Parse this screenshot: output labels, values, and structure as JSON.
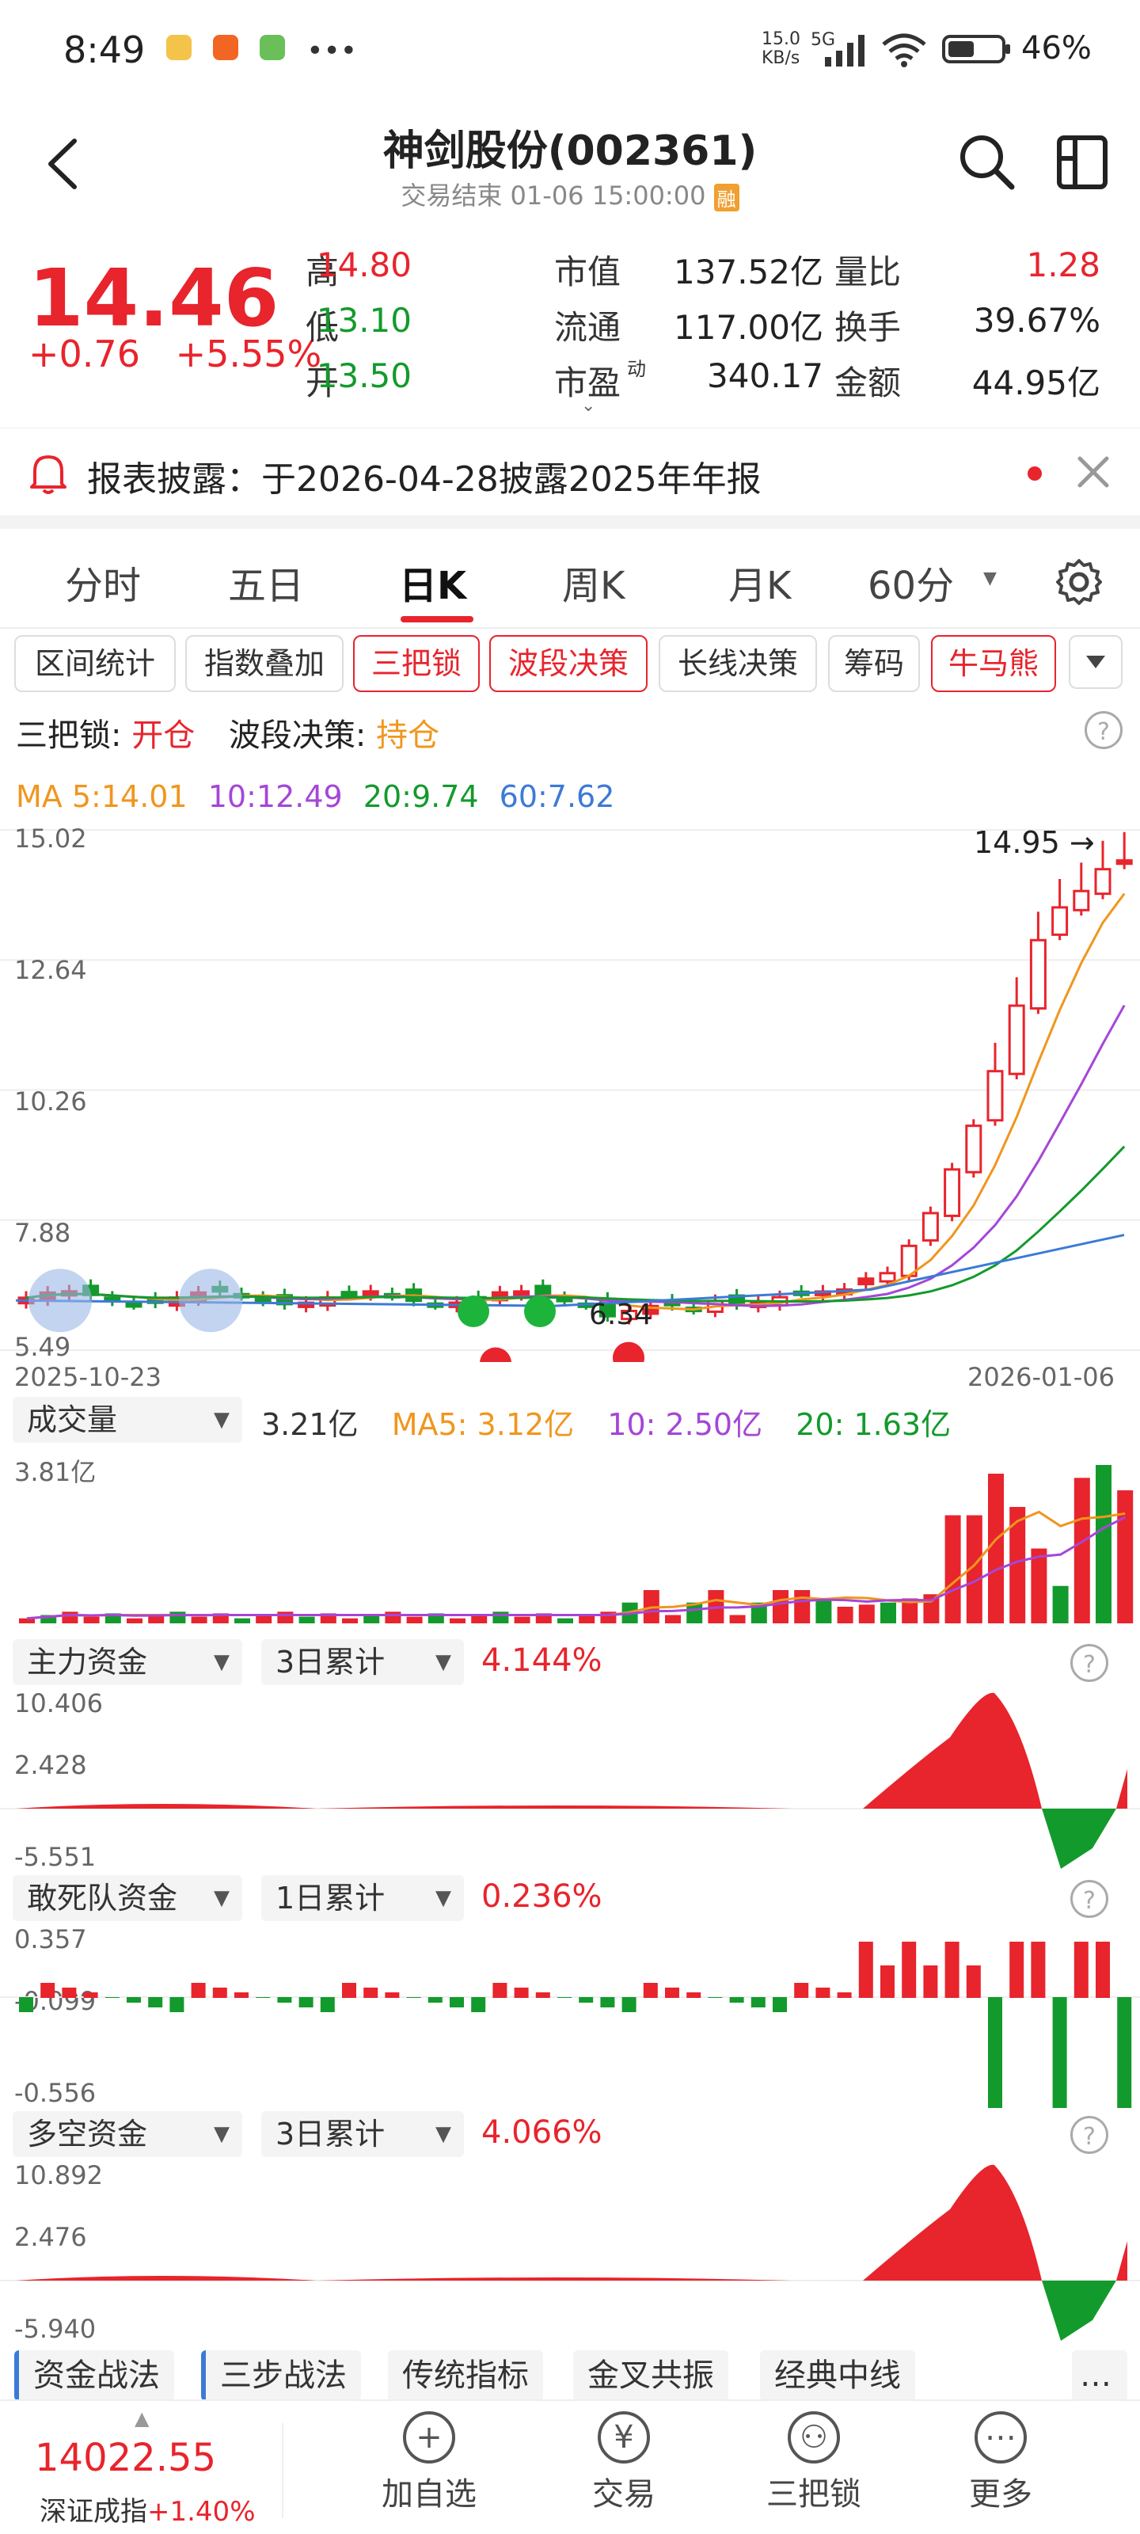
{
  "status_bar": {
    "time": "8:49",
    "net_speed": "15.0\nKB/s",
    "network": "5G",
    "battery": "46%"
  },
  "header": {
    "title": "神剑股份(002361)",
    "subtitle": "交易结束 01-06 15:00:00",
    "badge": "融"
  },
  "quote": {
    "price": "14.46",
    "change": "+0.76",
    "change_pct": "+5.55%",
    "rows": [
      [
        {
          "label": "高",
          "value": "14.80",
          "color": "red"
        },
        {
          "label": "市值",
          "value": "137.52亿"
        },
        {
          "label": "量比",
          "value": "1.28",
          "color": "red"
        }
      ],
      [
        {
          "label": "低",
          "value": "13.10",
          "color": "green"
        },
        {
          "label": "流通",
          "value": "117.00亿"
        },
        {
          "label": "换手",
          "value": "39.67%"
        }
      ],
      [
        {
          "label": "开",
          "value": "13.50",
          "color": "green"
        },
        {
          "label": "市盈",
          "value": "340.17",
          "sup": "动"
        },
        {
          "label": "金额",
          "value": "44.95亿"
        }
      ]
    ]
  },
  "notice": {
    "text": "报表披露：于2026-04-28披露2025年年报"
  },
  "tabs": [
    "分时",
    "五日",
    "日K",
    "周K",
    "月K",
    "60分"
  ],
  "active_tab": "日K",
  "tools": [
    {
      "label": "区间统计",
      "active": false
    },
    {
      "label": "指数叠加",
      "active": false
    },
    {
      "label": "三把锁",
      "active": true
    },
    {
      "label": "波段决策",
      "active": true
    },
    {
      "label": "长线决策",
      "active": false
    },
    {
      "label": "筹码",
      "active": false
    },
    {
      "label": "牛马熊",
      "active": true
    }
  ],
  "signals": {
    "lock_label": "三把锁:",
    "lock_value": "开仓",
    "wave_label": "波段决策:",
    "wave_value": "持仓"
  },
  "ma_legend": {
    "ma5": "MA 5:14.01",
    "ma10": "10:12.49",
    "ma20": "20:9.74",
    "ma60": "60:7.62"
  },
  "colors": {
    "up": "#e8242c",
    "down": "#139a2c",
    "ma5": "#f0961e",
    "ma10": "#a546d8",
    "ma20": "#139a2c",
    "ma60": "#3c7ad6"
  },
  "kline": {
    "y_labels": [
      "15.02",
      "12.64",
      "10.26",
      "7.88",
      "5.49"
    ],
    "x_start": "2025-10-23",
    "x_end": "2026-01-06",
    "high_marker": "14.95",
    "low_marker": "6.34",
    "ylim": [
      5.49,
      15.02
    ]
  },
  "volume": {
    "selector": "成交量",
    "value": "3.21亿",
    "ma5": "MA5: 3.12亿",
    "ma10": "10: 2.50亿",
    "ma20": "20: 1.63亿",
    "ymax_label": "3.81亿"
  },
  "panels": [
    {
      "name": "主力资金",
      "period": "3日累计",
      "value": "4.144%",
      "labels": [
        "10.406",
        "2.428",
        "-5.551"
      ]
    },
    {
      "name": "敢死队资金",
      "period": "1日累计",
      "value": "0.236%",
      "labels": [
        "0.357",
        "-0.099",
        "-0.556"
      ]
    },
    {
      "name": "多空资金",
      "period": "3日累计",
      "value": "4.066%",
      "labels": [
        "10.892",
        "2.476",
        "-5.940"
      ]
    }
  ],
  "bottom_tabs": [
    "资金战法",
    "三步战法",
    "传统指标",
    "金叉共振",
    "经典中线"
  ],
  "index_bar": {
    "value": "14022.55",
    "name": "深证成指",
    "change": "+1.40%"
  },
  "nav": [
    {
      "label": "加自选",
      "icon": "plus-circle-icon",
      "glyph": "+"
    },
    {
      "label": "交易",
      "icon": "yen-circle-icon",
      "glyph": "¥"
    },
    {
      "label": "三把锁",
      "icon": "lock-stack-icon",
      "glyph": "⚇"
    },
    {
      "label": "更多",
      "icon": "more-dots-icon",
      "glyph": "⋯"
    }
  ]
}
